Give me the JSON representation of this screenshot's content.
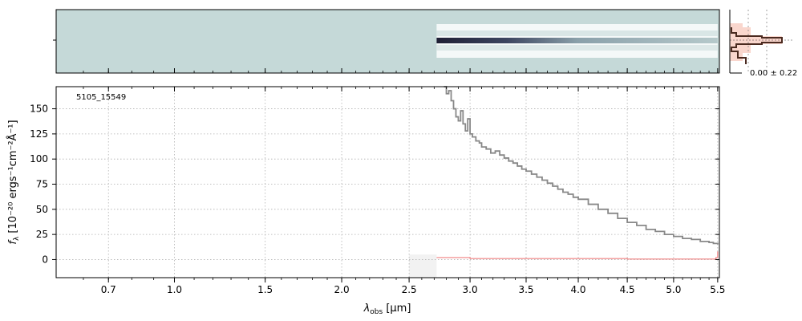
{
  "object_id": "5105_15549",
  "side_stat": "0.00 ± 0.22",
  "colors": {
    "spectrum": "#888888",
    "error": "#f08080",
    "grid": "#b0b0b0",
    "trace_dark": "#2a2a40",
    "profile_fill": "#f7c8bc",
    "profile_line": "#4a2a20",
    "background_2d": "#c5d9d8"
  },
  "chart_data": {
    "type": "line",
    "title": "",
    "xlabel": "λobs [μm]",
    "xlabel_main": "λ",
    "xlabel_sub": "obs",
    "xlabel_unit": " [μm]",
    "ylabel": "fλ [10⁻²⁰ ergs⁻¹cm⁻²Å⁻¹]",
    "ylabel_f": "f",
    "ylabel_sub": "λ",
    "ylabel_rest": " [10⁻²⁰ ergs⁻¹cm⁻²Å⁻¹]",
    "x_scale": "sqrt",
    "xlim": [
      0.5,
      5.52
    ],
    "ylim": [
      -18,
      172
    ],
    "x_ticks": [
      0.7,
      1.0,
      1.5,
      2.0,
      2.5,
      3.0,
      3.5,
      4.0,
      4.5,
      5.0,
      5.5
    ],
    "x_tick_labels": [
      "0.7",
      "1.0",
      "1.5",
      "2.0",
      "2.5",
      "3.0",
      "3.5",
      "4.0",
      "4.5",
      "5.0",
      "5.5"
    ],
    "y_ticks": [
      0,
      25,
      50,
      75,
      100,
      125,
      150
    ],
    "y_tick_labels": [
      "0",
      "25",
      "50",
      "75",
      "100",
      "125",
      "150"
    ],
    "grid": true,
    "series": [
      {
        "x": [
          2.78,
          2.8,
          2.82,
          2.84,
          2.86,
          2.88,
          2.9,
          2.92,
          2.94,
          2.96,
          2.98,
          3.0,
          3.02,
          3.05,
          3.08,
          3.1,
          3.14,
          3.18,
          3.22,
          3.26,
          3.3,
          3.34,
          3.38,
          3.42,
          3.46,
          3.5,
          3.55,
          3.6,
          3.65,
          3.7,
          3.75,
          3.8,
          3.85,
          3.9,
          3.95,
          4.0,
          4.1,
          4.2,
          4.3,
          4.4,
          4.5,
          4.6,
          4.7,
          4.8,
          4.9,
          5.0,
          5.1,
          5.2,
          5.3,
          5.4,
          5.45,
          5.5
        ],
        "y": [
          172,
          165,
          168,
          158,
          150,
          142,
          138,
          148,
          135,
          128,
          140,
          125,
          122,
          118,
          116,
          112,
          110,
          106,
          108,
          104,
          101,
          98,
          96,
          93,
          90,
          88,
          85,
          82,
          79,
          76,
          73,
          70,
          67,
          65,
          62,
          60,
          55,
          50,
          46,
          41,
          37,
          34,
          30,
          28,
          25,
          23,
          21,
          20,
          18,
          17,
          16,
          15
        ]
      },
      {
        "x": [
          2.72,
          3.0,
          3.5,
          4.0,
          4.5,
          5.0,
          5.3,
          5.48,
          5.5
        ],
        "y": [
          2,
          1,
          1,
          1,
          0.5,
          0.5,
          0.5,
          2,
          8
        ]
      }
    ],
    "shaded_region": [
      2.5,
      2.72
    ],
    "trace_2d": {
      "x_start": 2.72,
      "x_end": 5.5
    }
  }
}
